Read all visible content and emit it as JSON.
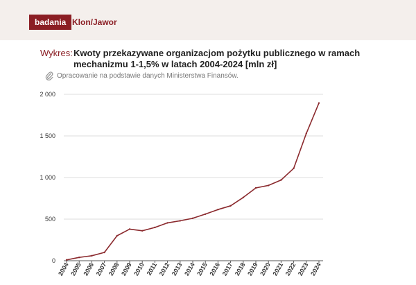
{
  "header": {
    "badge": "badania",
    "brand": "Klon/Jawor"
  },
  "chart_header": {
    "prefix": "Wykres:",
    "title": "Kwoty przekazywane organizacjom pożytku publicznego w ramach mechanizmu 1-1,5% w latach 2004-2024 [mln zł]",
    "source": "Opracowanie na podstawie danych Ministerstwa Finansów.",
    "source_icon": "paperclip-icon"
  },
  "colors": {
    "accent": "#8b1e24",
    "line": "#8b2a2e",
    "grid": "#dddddd",
    "topbar": "#f4efec"
  },
  "chart_data": {
    "type": "line",
    "title": "Kwoty przekazywane organizacjom pożytku publicznego w ramach mechanizmu 1-1,5% w latach 2004-2024 [mln zł]",
    "xlabel": "",
    "ylabel": "",
    "categories": [
      "2004",
      "2005",
      "2006",
      "2007",
      "2008",
      "2009",
      "2010",
      "2011",
      "2012",
      "2013",
      "2014",
      "2015",
      "2016",
      "2017",
      "2018",
      "2019",
      "2020",
      "2021",
      "2022",
      "2023",
      "2024"
    ],
    "series": [
      {
        "values": [
          10,
          40,
          60,
          100,
          300,
          380,
          360,
          400,
          455,
          480,
          510,
          560,
          615,
          660,
          760,
          875,
          905,
          970,
          1110,
          1530,
          1895
        ]
      }
    ],
    "ylim": [
      0,
      2000
    ],
    "yticks": [
      0,
      500,
      1000,
      1500,
      2000
    ],
    "ytick_labels": [
      "0",
      "500",
      "1 000",
      "1 500",
      "2 000"
    ],
    "grid": true,
    "legend": "none"
  }
}
